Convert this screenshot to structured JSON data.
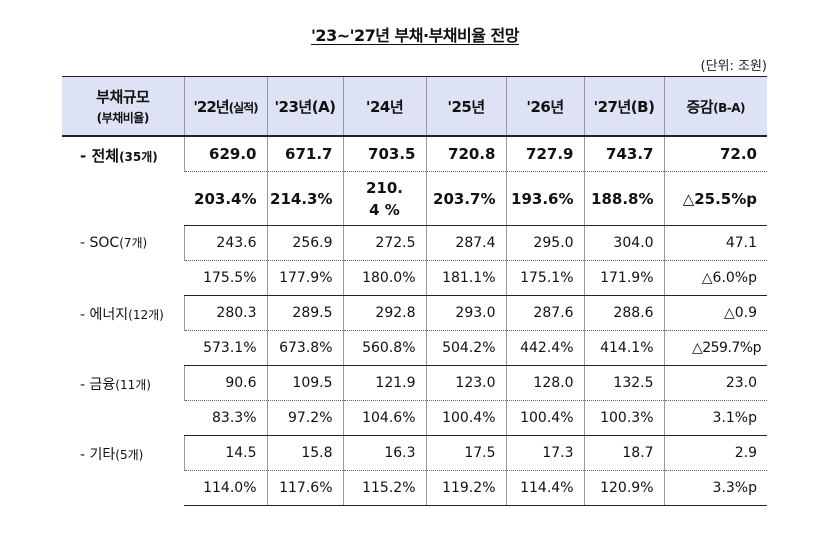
{
  "title": "'23~'27년 부채·부채비율 전망",
  "unit": "(단위: 조원)",
  "header": {
    "col0_main": "부채규모",
    "col0_sub": "(부채비율)",
    "col1_main": "'22년",
    "col1_sub": "(실적)",
    "col2": "'23년(A)",
    "col3": "'24년",
    "col4": "'25년",
    "col5": "'26년",
    "col6": "'27년(B)",
    "col7_main": "증감",
    "col7_sub": "(B-A)"
  },
  "rows": [
    {
      "label": "- 전체",
      "count": "(35개)",
      "debt": [
        "629.0",
        "671.7",
        "703.5",
        "720.8",
        "727.9",
        "743.7",
        "72.0"
      ],
      "ratio": [
        "203.4%",
        "214.3%",
        "210.4 %",
        "203.7%",
        "193.6%",
        "188.8%",
        "△25.5%p"
      ]
    },
    {
      "label": "- SOC",
      "count": "(7개)",
      "debt": [
        "243.6",
        "256.9",
        "272.5",
        "287.4",
        "295.0",
        "304.0",
        "47.1"
      ],
      "ratio": [
        "175.5%",
        "177.9%",
        "180.0%",
        "181.1%",
        "175.1%",
        "171.9%",
        "△6.0%p"
      ]
    },
    {
      "label": "- 에너지",
      "count": "(12개)",
      "debt": [
        "280.3",
        "289.5",
        "292.8",
        "293.0",
        "287.6",
        "288.6",
        "△0.9"
      ],
      "ratio": [
        "573.1%",
        "673.8%",
        "560.8%",
        "504.2%",
        "442.4%",
        "414.1%",
        "△259.7%p"
      ]
    },
    {
      "label": "- 금융",
      "count": "(11개)",
      "debt": [
        "90.6",
        "109.5",
        "121.9",
        "123.0",
        "128.0",
        "132.5",
        "23.0"
      ],
      "ratio": [
        "83.3%",
        "97.2%",
        "104.6%",
        "100.4%",
        "100.4%",
        "100.3%",
        "3.1%p"
      ]
    },
    {
      "label": "- 기타",
      "count": "(5개)",
      "debt": [
        "14.5",
        "15.8",
        "16.3",
        "17.5",
        "17.3",
        "18.7",
        "2.9"
      ],
      "ratio": [
        "114.0%",
        "117.6%",
        "115.2%",
        "119.2%",
        "114.4%",
        "120.9%",
        "3.3%p"
      ]
    }
  ]
}
